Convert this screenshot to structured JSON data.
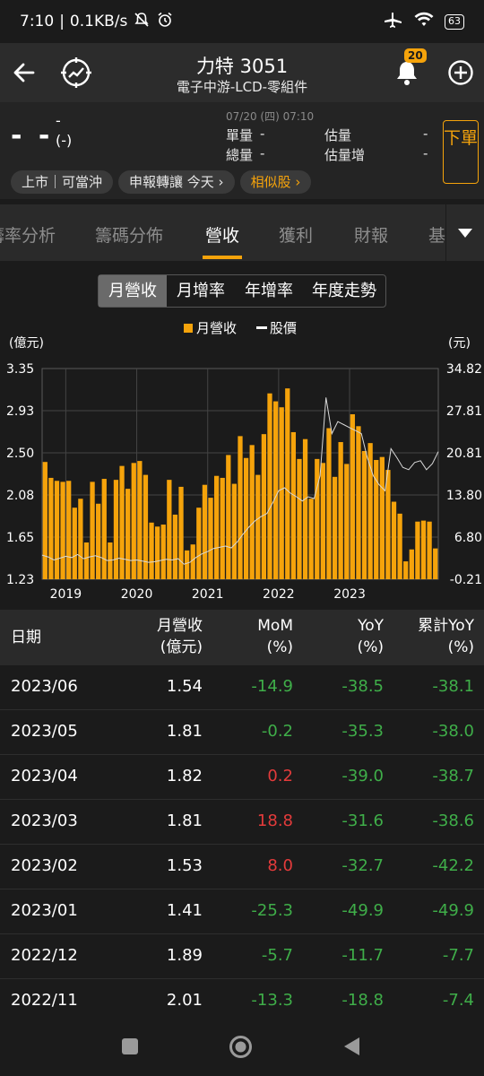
{
  "status": {
    "time": "7:10",
    "speed": "0.1KB/s",
    "battery": "63"
  },
  "header": {
    "title": "力特 3051",
    "subtitle": "電子中游-LCD-零組件",
    "notification_count": "20"
  },
  "quote": {
    "price": "- -",
    "change": "-",
    "change_pct": "(-)",
    "timestamp": "07/20 (四) 07:10",
    "unit_volume_label": "單量",
    "unit_volume_value": "-",
    "total_volume_label": "總量",
    "total_volume_value": "-",
    "est_volume_label": "估量",
    "est_volume_value": "-",
    "est_increase_label": "估量增",
    "est_increase_value": "-",
    "order_button": "下單",
    "tags": [
      "上市｜可當沖",
      "申報轉讓 今天 ›"
    ],
    "similar_tag": "相似股 ›"
  },
  "tabs": {
    "items": [
      "籌率分析",
      "籌碼分佈",
      "營收",
      "獲利",
      "財報",
      "基"
    ],
    "active": "營收"
  },
  "segment": {
    "items": [
      "月營收",
      "月增率",
      "年增率",
      "年度走勢"
    ],
    "active": "月營收"
  },
  "colors": {
    "accent": "#f5a30b",
    "bar": "#f5a30b",
    "positive": "#e33b3b",
    "negative": "#3fae49"
  },
  "chart_data": {
    "type": "bar",
    "legend": [
      "月營收",
      "股價"
    ],
    "ylabel_left": "(億元)",
    "ylabel_right": "(元)",
    "left_ticks": [
      "3.35",
      "2.93",
      "2.50",
      "2.08",
      "1.65",
      "1.23"
    ],
    "right_ticks": [
      "34.82",
      "27.81",
      "20.81",
      "13.80",
      "6.80",
      "-0.21"
    ],
    "ylim_left": [
      1.23,
      3.35
    ],
    "ylim_right": [
      -0.21,
      34.82
    ],
    "x_tick_labels": [
      "2019",
      "2020",
      "2021",
      "2022",
      "2023"
    ],
    "x_tick_index": [
      4,
      16,
      28,
      40,
      52
    ],
    "revenue": [
      2.41,
      2.25,
      2.22,
      2.21,
      2.22,
      1.95,
      2.04,
      1.6,
      2.21,
      1.99,
      2.24,
      1.6,
      2.23,
      2.37,
      2.14,
      2.4,
      2.42,
      2.28,
      1.8,
      1.76,
      1.78,
      2.23,
      1.88,
      2.16,
      1.52,
      1.58,
      1.95,
      2.18,
      2.05,
      2.27,
      2.25,
      2.48,
      2.19,
      2.67,
      2.45,
      2.58,
      2.28,
      2.69,
      3.1,
      3.02,
      2.96,
      3.15,
      2.71,
      2.44,
      2.64,
      2.04,
      2.44,
      2.4,
      2.75,
      2.26,
      2.61,
      2.39,
      2.89,
      2.77,
      2.52,
      2.6,
      2.43,
      2.46,
      2.33,
      2.01,
      1.89,
      1.41,
      1.53,
      1.81,
      1.82,
      1.81,
      1.54
    ],
    "price": [
      3.8,
      3.5,
      3.0,
      3.3,
      3.6,
      3.4,
      3.9,
      3.2,
      3.5,
      3.7,
      3.4,
      2.9,
      3.0,
      3.3,
      3.1,
      2.9,
      3.0,
      2.8,
      2.6,
      2.7,
      2.9,
      3.1,
      3.0,
      3.2,
      2.3,
      2.6,
      3.4,
      4.0,
      4.4,
      4.9,
      5.1,
      5.3,
      5.0,
      6.0,
      7.3,
      8.5,
      9.5,
      10.2,
      10.7,
      12.5,
      14.5,
      15.0,
      14.1,
      13.5,
      12.8,
      13.5,
      13.2,
      17.0,
      30.0,
      24.0,
      26.0,
      25.5,
      25.0,
      24.5,
      24.0,
      20.0,
      17.0,
      15.5,
      14.5,
      21.5,
      20.0,
      18.4,
      18.0,
      19.2,
      19.5,
      18.0,
      19.0,
      21.0
    ]
  },
  "table": {
    "columns": [
      {
        "line1": "日期",
        "line2": ""
      },
      {
        "line1": "月營收",
        "line2": "(億元)"
      },
      {
        "line1": "MoM",
        "line2": "(%)"
      },
      {
        "line1": "YoY",
        "line2": "(%)"
      },
      {
        "line1": "累計YoY",
        "line2": "(%)"
      }
    ],
    "rows": [
      {
        "date": "2023/06",
        "revenue": "1.54",
        "mom": "-14.9",
        "yoy": "-38.5",
        "cum": "-38.1"
      },
      {
        "date": "2023/05",
        "revenue": "1.81",
        "mom": "-0.2",
        "yoy": "-35.3",
        "cum": "-38.0"
      },
      {
        "date": "2023/04",
        "revenue": "1.82",
        "mom": "0.2",
        "yoy": "-39.0",
        "cum": "-38.7"
      },
      {
        "date": "2023/03",
        "revenue": "1.81",
        "mom": "18.8",
        "yoy": "-31.6",
        "cum": "-38.6"
      },
      {
        "date": "2023/02",
        "revenue": "1.53",
        "mom": "8.0",
        "yoy": "-32.7",
        "cum": "-42.2"
      },
      {
        "date": "2023/01",
        "revenue": "1.41",
        "mom": "-25.3",
        "yoy": "-49.9",
        "cum": "-49.9"
      },
      {
        "date": "2022/12",
        "revenue": "1.89",
        "mom": "-5.7",
        "yoy": "-11.7",
        "cum": "-7.7"
      },
      {
        "date": "2022/11",
        "revenue": "2.01",
        "mom": "-13.3",
        "yoy": "-18.8",
        "cum": "-7.4"
      }
    ]
  }
}
